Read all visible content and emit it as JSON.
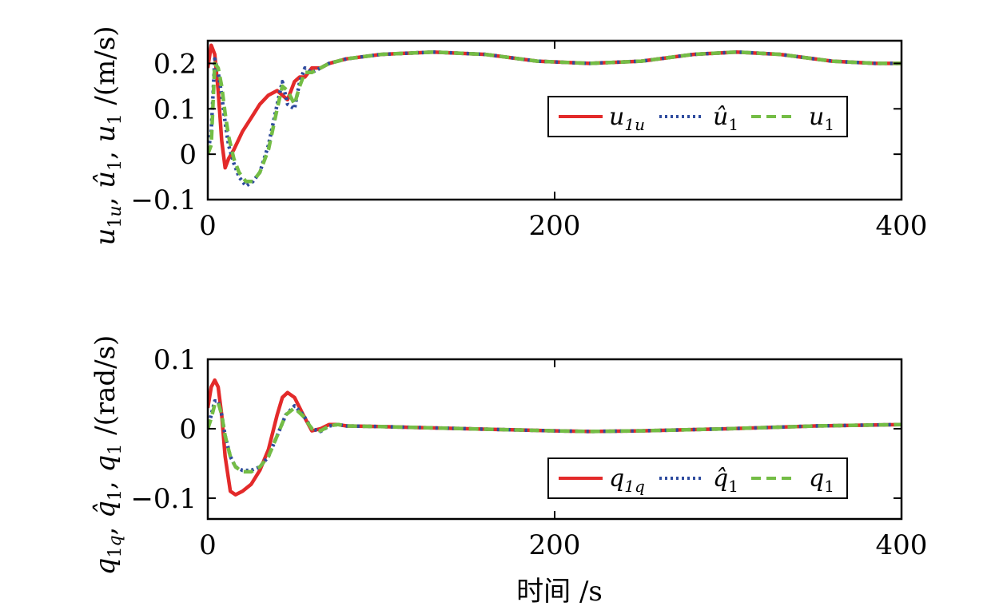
{
  "colors": {
    "red": "#e32a2a",
    "blue": "#2e4b9e",
    "green": "#74bd45"
  },
  "chart_data": [
    {
      "type": "line",
      "xlim": [
        0,
        400
      ],
      "ylim": [
        -0.1,
        0.25
      ],
      "xticks": [
        0,
        200,
        400
      ],
      "xtick_labels": [
        "0",
        "200",
        "400"
      ],
      "yticks": [
        -0.1,
        0,
        0.1,
        0.2
      ],
      "ytick_labels": [
        "−0.1",
        "0",
        "0.1",
        "0.2"
      ],
      "ylabel": "u1u, û1, u1 /(m/s)",
      "grid": false,
      "legend_position": "center-right",
      "series": [
        {
          "name": "u1u",
          "color": "#e32a2a",
          "style": "solid",
          "x": [
            0,
            2,
            4,
            6,
            8,
            10,
            12,
            15,
            20,
            25,
            30,
            35,
            40,
            43,
            46,
            50,
            53,
            56,
            60,
            65,
            70,
            80,
            100,
            130,
            160,
            190,
            220,
            250,
            280,
            305,
            330,
            360,
            385,
            400
          ],
          "y": [
            0.19,
            0.24,
            0.22,
            0.14,
            0.03,
            -0.03,
            -0.01,
            0.01,
            0.05,
            0.08,
            0.11,
            0.13,
            0.14,
            0.13,
            0.12,
            0.16,
            0.17,
            0.17,
            0.19,
            0.19,
            0.2,
            0.21,
            0.22,
            0.225,
            0.22,
            0.205,
            0.2,
            0.205,
            0.22,
            0.225,
            0.22,
            0.205,
            0.2,
            0.2
          ]
        },
        {
          "name": "û1",
          "color": "#2e4b9e",
          "style": "dotted",
          "x": [
            0,
            2,
            4,
            6,
            8,
            10,
            12,
            15,
            18,
            22,
            26,
            30,
            35,
            40,
            43,
            46,
            50,
            53,
            56,
            60,
            65,
            70,
            80,
            100,
            130,
            160,
            190,
            220,
            250,
            280,
            305,
            330,
            360,
            385,
            400
          ],
          "y": [
            0.0,
            0.05,
            0.21,
            0.18,
            0.13,
            0.07,
            0.02,
            -0.02,
            -0.05,
            -0.07,
            -0.06,
            -0.04,
            0.02,
            0.11,
            0.16,
            0.11,
            0.1,
            0.16,
            0.19,
            0.18,
            0.19,
            0.2,
            0.21,
            0.22,
            0.225,
            0.22,
            0.205,
            0.2,
            0.205,
            0.22,
            0.225,
            0.22,
            0.205,
            0.2,
            0.2
          ]
        },
        {
          "name": "u1",
          "color": "#74bd45",
          "style": "dashed",
          "x": [
            0,
            2,
            4,
            6,
            8,
            10,
            12,
            15,
            18,
            22,
            26,
            30,
            35,
            40,
            43,
            46,
            50,
            53,
            56,
            60,
            65,
            70,
            80,
            100,
            130,
            160,
            190,
            220,
            250,
            280,
            305,
            330,
            360,
            385,
            400
          ],
          "y": [
            0.0,
            0.02,
            0.2,
            0.19,
            0.15,
            0.09,
            0.04,
            -0.01,
            -0.04,
            -0.06,
            -0.06,
            -0.04,
            0.01,
            0.1,
            0.15,
            0.14,
            0.11,
            0.15,
            0.18,
            0.18,
            0.19,
            0.2,
            0.21,
            0.22,
            0.225,
            0.22,
            0.205,
            0.2,
            0.205,
            0.22,
            0.225,
            0.22,
            0.205,
            0.2,
            0.2
          ]
        }
      ]
    },
    {
      "type": "line",
      "xlim": [
        0,
        400
      ],
      "ylim": [
        -0.13,
        0.1
      ],
      "xticks": [
        0,
        200,
        400
      ],
      "xtick_labels": [
        "0",
        "200",
        "400"
      ],
      "yticks": [
        -0.1,
        0,
        0.1
      ],
      "ytick_labels": [
        "−0.1",
        "0",
        "0.1"
      ],
      "xlabel": "时间 /s",
      "ylabel": "q1q, q̂1, q1 /(rad/s)",
      "grid": false,
      "legend_position": "lower-right",
      "series": [
        {
          "name": "q1q",
          "color": "#e32a2a",
          "style": "solid",
          "x": [
            0,
            2,
            4,
            6,
            8,
            10,
            13,
            16,
            20,
            25,
            30,
            35,
            40,
            43,
            46,
            50,
            55,
            60,
            65,
            70,
            75,
            80,
            100,
            150,
            200,
            220,
            250,
            300,
            350,
            400
          ],
          "y": [
            0.03,
            0.06,
            0.07,
            0.06,
            0.02,
            -0.04,
            -0.09,
            -0.095,
            -0.09,
            -0.08,
            -0.06,
            -0.03,
            0.02,
            0.045,
            0.052,
            0.045,
            0.02,
            -0.003,
            0.0,
            0.006,
            0.006,
            0.004,
            0.003,
            0.0,
            -0.003,
            -0.004,
            -0.003,
            0.0,
            0.004,
            0.006
          ]
        },
        {
          "name": "q̂1",
          "color": "#2e4b9e",
          "style": "dotted",
          "x": [
            0,
            2,
            4,
            6,
            8,
            10,
            13,
            16,
            20,
            25,
            30,
            35,
            40,
            45,
            50,
            55,
            60,
            65,
            70,
            75,
            80,
            100,
            150,
            200,
            220,
            250,
            300,
            350,
            400
          ],
          "y": [
            0.0,
            0.02,
            0.04,
            0.04,
            0.02,
            -0.01,
            -0.04,
            -0.055,
            -0.06,
            -0.06,
            -0.055,
            -0.04,
            -0.01,
            0.02,
            0.033,
            0.02,
            0.0,
            -0.004,
            0.004,
            0.006,
            0.004,
            0.003,
            0.0,
            -0.003,
            -0.004,
            -0.003,
            0.0,
            0.004,
            0.006
          ]
        },
        {
          "name": "q1",
          "color": "#74bd45",
          "style": "dashed",
          "x": [
            0,
            2,
            4,
            6,
            8,
            10,
            13,
            16,
            20,
            25,
            30,
            35,
            40,
            45,
            50,
            55,
            60,
            65,
            70,
            75,
            80,
            100,
            150,
            200,
            220,
            250,
            300,
            350,
            400
          ],
          "y": [
            0.0,
            0.015,
            0.035,
            0.038,
            0.02,
            -0.01,
            -0.04,
            -0.055,
            -0.062,
            -0.062,
            -0.055,
            -0.04,
            -0.01,
            0.02,
            0.03,
            0.018,
            0.0,
            -0.003,
            0.004,
            0.006,
            0.004,
            0.003,
            0.0,
            -0.003,
            -0.004,
            -0.003,
            0.0,
            0.004,
            0.006
          ]
        }
      ]
    }
  ]
}
